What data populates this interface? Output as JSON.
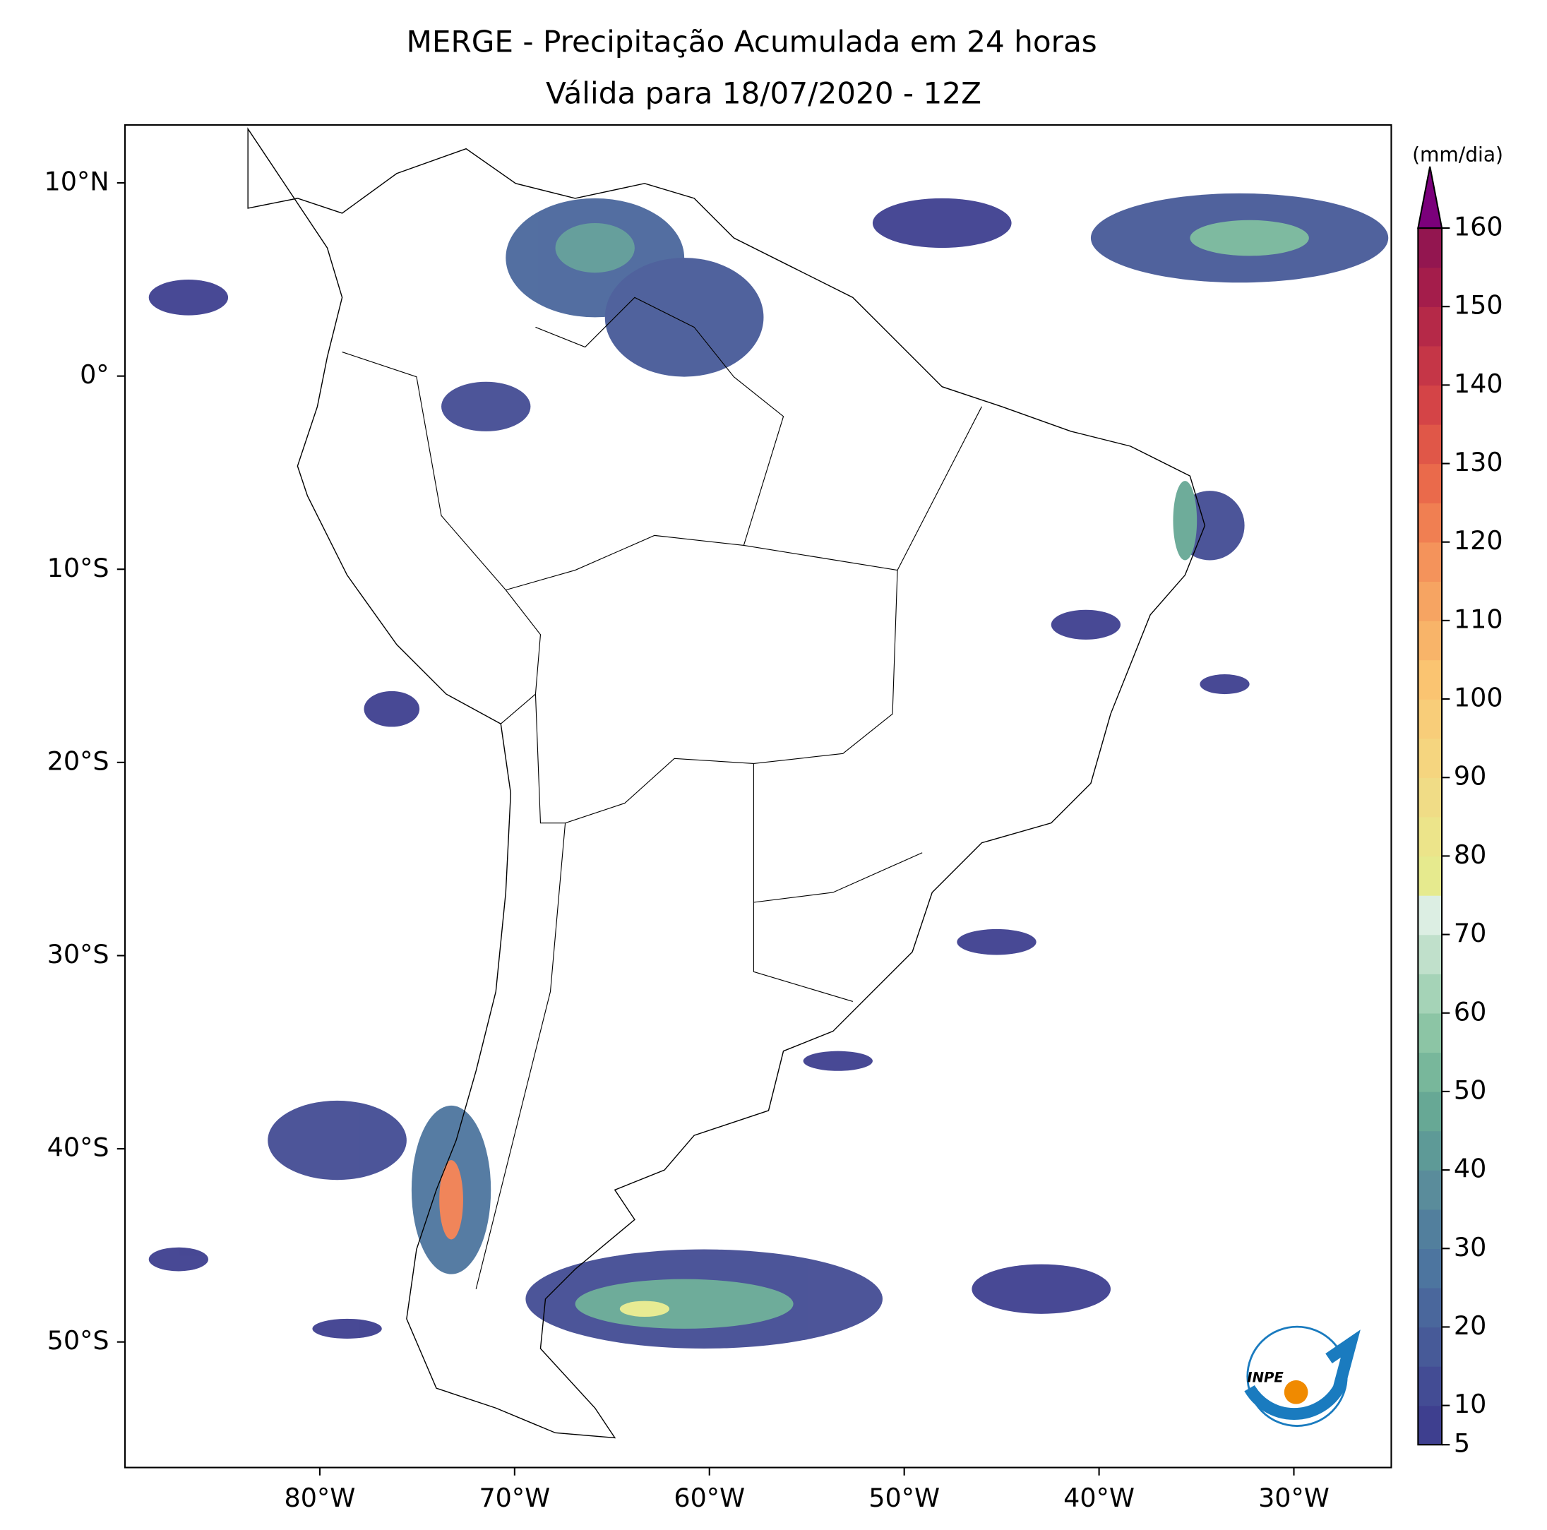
{
  "title": "MERGE - Precipitação Acumulada em 24 horas",
  "subtitle": "Válida para 18/07/2020 - 12Z",
  "map": {
    "lonlim": [
      -90,
      -25
    ],
    "latlim": [
      -56.5,
      13
    ],
    "lonticks": [
      {
        "value": -80,
        "label": "80°W"
      },
      {
        "value": -70,
        "label": "70°W"
      },
      {
        "value": -60,
        "label": "60°W"
      },
      {
        "value": -50,
        "label": "50°W"
      },
      {
        "value": -40,
        "label": "40°W"
      },
      {
        "value": -30,
        "label": "30°W"
      }
    ],
    "latticks": [
      {
        "value": 10,
        "label": "10°N"
      },
      {
        "value": 0,
        "label": "0°"
      },
      {
        "value": -10,
        "label": "10°S"
      },
      {
        "value": -20,
        "label": "20°S"
      },
      {
        "value": -30,
        "label": "30°S"
      },
      {
        "value": -40,
        "label": "40°S"
      },
      {
        "value": -50,
        "label": "50°S"
      }
    ]
  },
  "colorbar": {
    "label": "(mm/dia)",
    "range": [
      5,
      160
    ],
    "ticks": [
      5,
      10,
      20,
      30,
      40,
      50,
      60,
      70,
      80,
      90,
      100,
      110,
      120,
      130,
      140,
      150,
      160
    ],
    "levels": [
      5,
      10,
      15,
      20,
      25,
      30,
      35,
      40,
      45,
      50,
      55,
      60,
      65,
      70,
      75,
      80,
      85,
      90,
      95,
      100,
      105,
      110,
      115,
      120,
      125,
      130,
      135,
      140,
      145,
      150,
      155,
      160
    ],
    "colors": [
      "#3e3f8f",
      "#434c94",
      "#475a98",
      "#4a679c",
      "#4d759f",
      "#527f9d",
      "#5a8c9b",
      "#5e9a97",
      "#67a895",
      "#78b79b",
      "#8cc5a5",
      "#a5d3b7",
      "#c0e0cb",
      "#dceee3",
      "#e6ea8e",
      "#ece48a",
      "#f0dc86",
      "#f5d57f",
      "#f8cd79",
      "#fac471",
      "#f8b469",
      "#f6a462",
      "#f4935b",
      "#f07f52",
      "#ea6a4b",
      "#e05748",
      "#d44447",
      "#c53647",
      "#b52948",
      "#a41d4b",
      "#931650"
    ],
    "extend_color": "#7b007b"
  },
  "logo": "INPE"
}
